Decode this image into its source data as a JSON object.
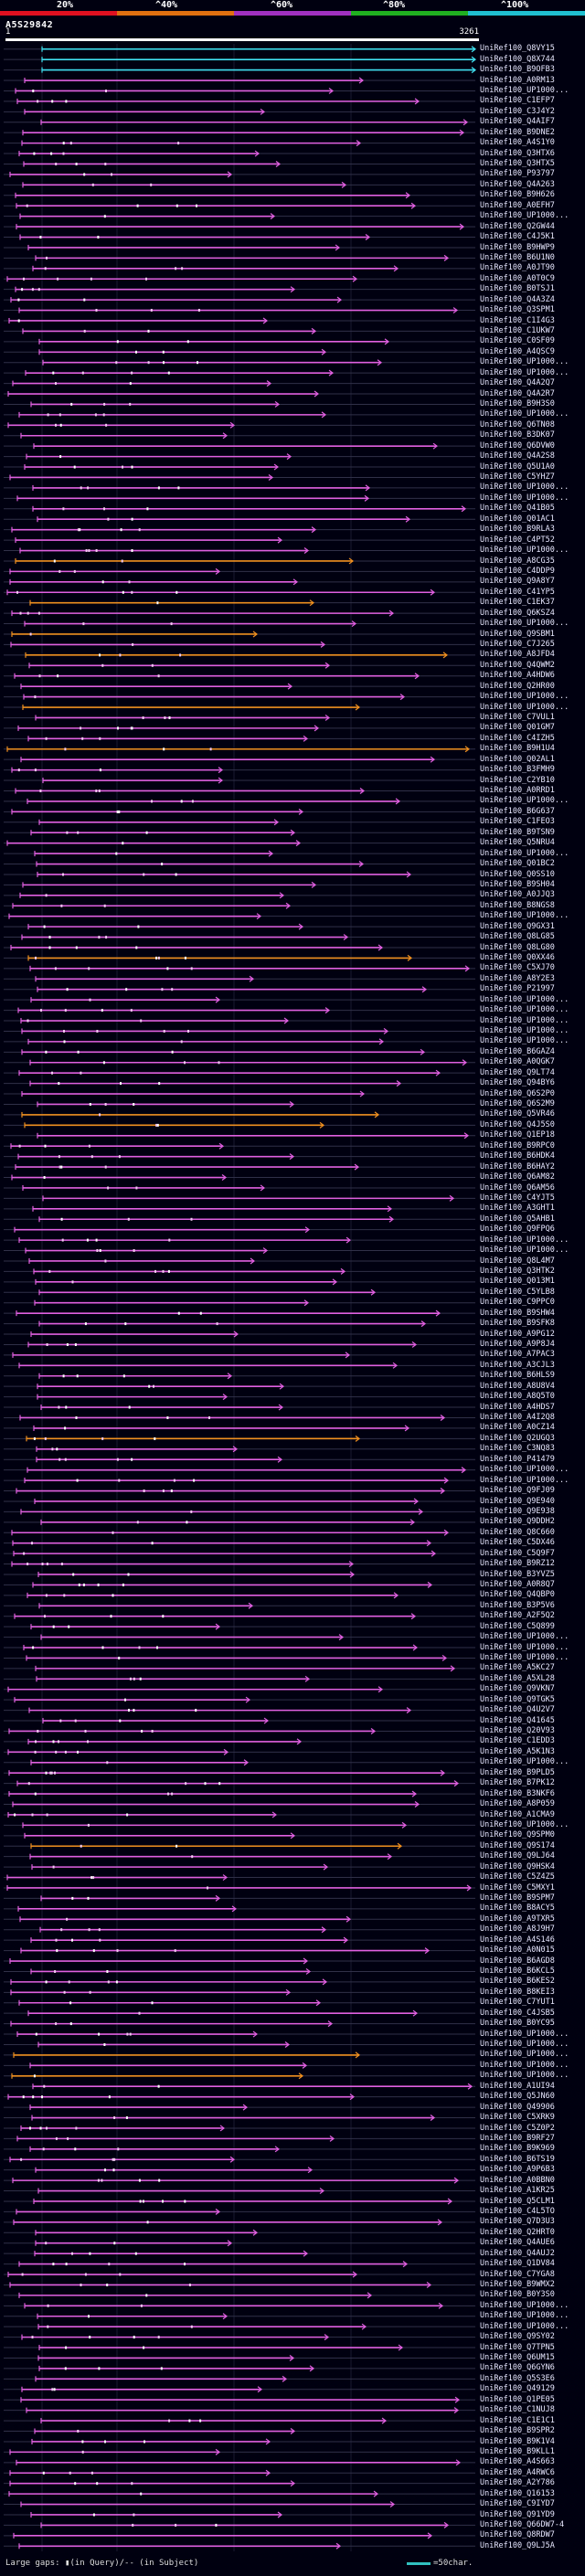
{
  "legend": {
    "ticks": [
      "20%",
      "^40%",
      "^60%",
      "^80%",
      "^100%"
    ],
    "colors": [
      "#e01020",
      "#e07010",
      "#a030c0",
      "#20b020",
      "#20c0d0"
    ]
  },
  "query": {
    "id": "A5S29842",
    "start": "1",
    "end": "3261"
  },
  "colors": {
    "cyan": "#40e0f0",
    "magenta": "#e060e0",
    "orange": "#f09020",
    "faint": "#303048",
    "background": "#000010"
  },
  "hits": [
    "UniRef100_Q8VY15",
    "UniRef100_Q8X744",
    "UniRef100_B9OFB3",
    "UniRef100_A0RM13",
    "UniRef100_UP1000...",
    "UniRef100_C1EFP7",
    "UniRef100_C3J4Y2",
    "UniRef100_Q4AIF7",
    "UniRef100_B9DNE2",
    "UniRef100_A4S1Y0",
    "UniRef100_Q3HTX6",
    "UniRef100_Q3HTX5",
    "UniRef100_P93797",
    "UniRef100_Q4A263",
    "UniRef100_B9H626",
    "UniRef100_A0EFH7",
    "UniRef100_UP1000...",
    "UniRef100_Q2GW44",
    "UniRef100_C4J5K1",
    "UniRef100_B9HWP9",
    "UniRef100_B6U1N0",
    "UniRef100_A0JT90",
    "UniRef100_A0T0C9",
    "UniRef100_B0TSJ1",
    "UniRef100_Q4A3Z4",
    "UniRef100_Q3SPM1",
    "UniRef100_C1I4G3",
    "UniRef100_C1UKW7",
    "UniRef100_C0SF09",
    "UniRef100_A4QSC9",
    "UniRef100_UP1000...",
    "UniRef100_UP1000...",
    "UniRef100_Q4A2Q7",
    "UniRef100_Q4A2R7",
    "UniRef100_B9H3S0",
    "UniRef100_UP1000...",
    "UniRef100_Q6TN08",
    "UniRef100_B3DK07",
    "UniRef100_Q6DVW0",
    "UniRef100_Q4A2S8",
    "UniRef100_Q5U1A0",
    "UniRef100_C5YHZ7",
    "UniRef100_UP1000...",
    "UniRef100_UP1000...",
    "UniRef100_Q41B05",
    "UniRef100_Q01AC1",
    "UniRef100_B9RLA3",
    "UniRef100_C4PT52",
    "UniRef100_UP1000...",
    "UniRef100_A8CG35",
    "UniRef100_C4DDP9",
    "UniRef100_Q9A8Y7",
    "UniRef100_C41YP5",
    "UniRef100_C1EK37",
    "UniRef100_Q6KSZ4",
    "UniRef100_UP1000...",
    "UniRef100_Q9SBM1",
    "UniRef100_C7J265",
    "UniRef100_A8JFD4",
    "UniRef100_Q4QWM2",
    "UniRef100_A4HDW6",
    "UniRef100_Q2HR00",
    "UniRef100_UP1000...",
    "UniRef100_UP1000...",
    "UniRef100_C7VUL1",
    "UniRef100_Q01GM7",
    "UniRef100_C4IZH5",
    "UniRef100_B9H1U4",
    "UniRef100_Q02AL1",
    "UniRef100_B3FMH9",
    "UniRef100_C2YB10",
    "UniRef100_A0RRD1",
    "UniRef100_UP1000...",
    "UniRef100_B6G637",
    "UniRef100_C1FEO3",
    "UniRef100_B9TSN9",
    "UniRef100_Q5NRU4",
    "UniRef100_UP1000...",
    "UniRef100_Q01BC2",
    "UniRef100_Q0SS10",
    "UniRef100_B9SH04",
    "UniRef100_A0JJQ3",
    "UniRef100_B8NGS8",
    "UniRef100_UP1000...",
    "UniRef100_Q9GX31",
    "UniRef100_Q8LG85",
    "UniRef100_Q8LG80",
    "UniRef100_Q0XX46",
    "UniRef100_C5XJ70",
    "UniRef100_A8Y2E3",
    "UniRef100_P21997",
    "UniRef100_UP1000...",
    "UniRef100_UP1000...",
    "UniRef100_UP1000...",
    "UniRef100_UP1000...",
    "UniRef100_UP1000...",
    "UniRef100_B6GAZ4",
    "UniRef100_A0QGK7",
    "UniRef100_Q9LT74",
    "UniRef100_Q94BY6",
    "UniRef100_Q6S2P0",
    "UniRef100_Q6S2M9",
    "UniRef100_Q5VR46",
    "UniRef100_Q4J5S0",
    "UniRef100_Q1EP18",
    "UniRef100_B9RPC0",
    "UniRef100_B6HDK4",
    "UniRef100_B6HAY2",
    "UniRef100_Q6AM82",
    "UniRef100_Q6AM56",
    "UniRef100_C4YJT5",
    "UniRef100_A3GHT1",
    "UniRef100_Q5AHB1",
    "UniRef100_Q9FPQ6",
    "UniRef100_UP1000...",
    "UniRef100_UP1000...",
    "UniRef100_Q8L4M7",
    "UniRef100_Q3HTK2",
    "UniRef100_Q013M1",
    "UniRef100_C5YLB8",
    "UniRef100_C9PPC0",
    "UniRef100_B9SHW4",
    "UniRef100_B9SFK8",
    "UniRef100_A9PG12",
    "UniRef100_A9P8J4",
    "UniRef100_A7PAC3",
    "UniRef100_A3CJL3",
    "UniRef100_B6HLS9",
    "UniRef100_A8U8V4",
    "UniRef100_A8Q5T0",
    "UniRef100_A4HDS7",
    "UniRef100_A4I2Q8",
    "UniRef100_A0CZ14",
    "UniRef100_Q2UGQ3",
    "UniRef100_C3NQ83",
    "UniRef100_P41479",
    "UniRef100_UP1000...",
    "UniRef100_UP1000...",
    "UniRef100_Q9FJ09",
    "UniRef100_Q9E940",
    "UniRef100_Q9E938",
    "UniRef100_Q9DDH2",
    "UniRef100_Q8C660",
    "UniRef100_C5DX46",
    "UniRef100_C5Q9F7",
    "UniRef100_B9RZ12",
    "UniRef100_B3YVZ5",
    "UniRef100_A0R8Q7",
    "UniRef100_Q4QBP0",
    "UniRef100_B3P5V6",
    "UniRef100_A2F5Q2",
    "UniRef100_C5Q899",
    "UniRef100_UP1000...",
    "UniRef100_UP1000...",
    "UniRef100_UP1000...",
    "UniRef100_A5KC27",
    "UniRef100_A5XL28",
    "UniRef100_Q9VKN7",
    "UniRef100_Q9TGK5",
    "UniRef100_Q4U2V7",
    "UniRef100_Q41645",
    "UniRef100_Q20V93",
    "UniRef100_C1EDD3",
    "UniRef100_A5K1N3",
    "UniRef100_UP1000...",
    "UniRef100_B9PLD5",
    "UniRef100_B7PK12",
    "UniRef100_B3NKF6",
    "UniRef100_A8P059",
    "UniRef100_A1CMA9",
    "UniRef100_UP1000...",
    "UniRef100_Q9SPM0",
    "UniRef100_Q9S174",
    "UniRef100_Q9LJ64",
    "UniRef100_Q9HSK4",
    "UniRef100_C5Z4Z5",
    "UniRef100_C5MXY1",
    "UniRef100_B9SPM7",
    "UniRef100_B8ACY5",
    "UniRef100_A9TXR5",
    "UniRef100_A8J9H7",
    "UniRef100_A4S146",
    "UniRef100_A0N015",
    "UniRef100_B6AGD8",
    "UniRef100_B6KCL5",
    "UniRef100_B6KES2",
    "UniRef100_B8KEI3",
    "UniRef100_C7YUT1",
    "UniRef100_C4JSB5",
    "UniRef100_B0YC95",
    "UniRef100_UP1000...",
    "UniRef100_UP1000...",
    "UniRef100_UP1000...",
    "UniRef100_UP1000...",
    "UniRef100_UP1000...",
    "UniRef100_A1UI94",
    "UniRef100_Q5JN60",
    "UniRef100_Q49906",
    "UniRef100_C5XRK9",
    "UniRef100_C5Z0P2",
    "UniRef100_B9RF27",
    "UniRef100_B9K969",
    "UniRef100_B6TS19",
    "UniRef100_A9P6B3",
    "UniRef100_A0BBN0",
    "UniRef100_A1KR25",
    "UniRef100_Q5CLM1",
    "UniRef100_C4L5TO",
    "UniRef100_Q7D3U3",
    "UniRef100_Q2HRT0",
    "UniRef100_Q4AUE6",
    "UniRef100_Q4AUJ2",
    "UniRef100_Q1DV84",
    "UniRef100_C7YGA8",
    "UniRef100_B9WMX2",
    "UniRef100_B0Y3S0",
    "UniRef100_UP1000...",
    "UniRef100_UP1000...",
    "UniRef100_UP1000...",
    "UniRef100_Q9SY02",
    "UniRef100_Q7TPN5",
    "UniRef100_Q6UM15",
    "UniRef100_Q6GYN6",
    "UniRef100_Q5S3E6",
    "UniRef100_Q49129",
    "UniRef100_Q1PE05",
    "UniRef100_C1NUJ8",
    "UniRef100_C1E1C1",
    "UniRef100_B9SPR2",
    "UniRef100_B9K1V4",
    "UniRef100_B9KLL1",
    "UniRef100_A4S663",
    "UniRef100_A4RWC6",
    "UniRef100_A2Y786",
    "UniRef100_Q16153",
    "UniRef100_C9IYD7",
    "UniRef100_Q91YD9",
    "UniRef100_Q66DW7-4",
    "UniRef100_Q8RDW7",
    "UniRef100_Q9LJ5A"
  ],
  "footer": {
    "gaps_text": "Large gaps: ▮(in Query)/-- (in Subject)",
    "scale_text": "=50char."
  }
}
